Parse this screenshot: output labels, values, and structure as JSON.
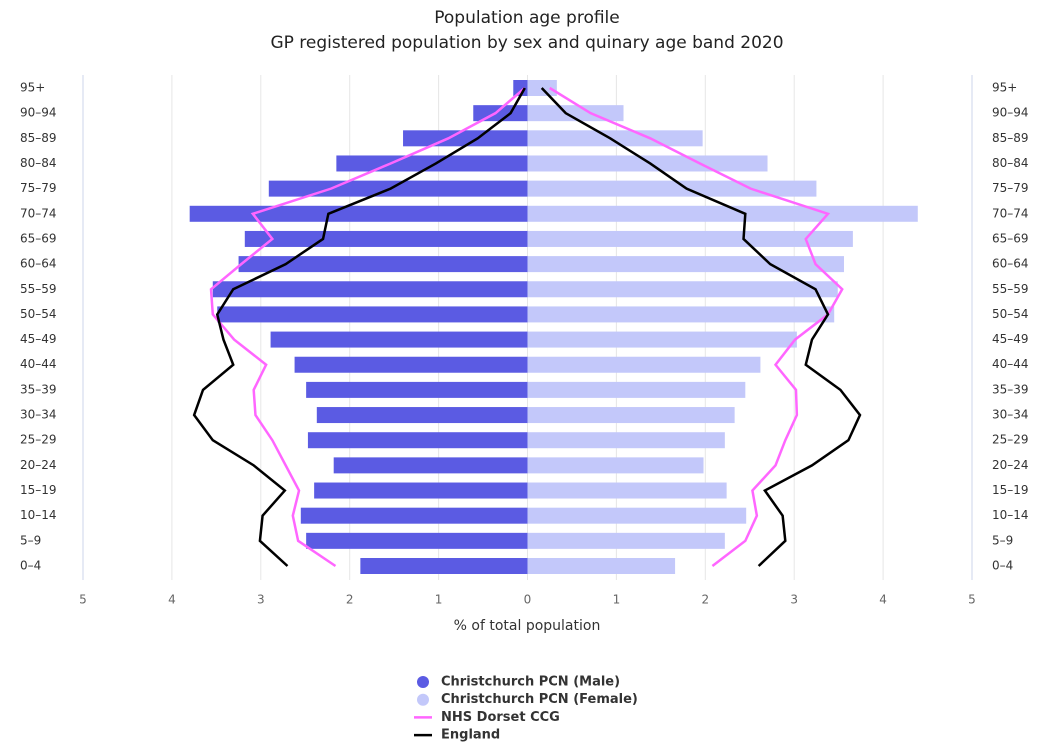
{
  "chart_data": {
    "type": "population-pyramid",
    "title": "Population age profile",
    "subtitle": "GP registered population by sex and quinary age band 2020",
    "x_axis_label": "% of total population",
    "categories": [
      "0–4",
      "5–9",
      "10–14",
      "15–19",
      "20–24",
      "25–29",
      "30–34",
      "35–39",
      "40–44",
      "45–49",
      "50–54",
      "55–59",
      "60–64",
      "65–69",
      "70–74",
      "75–79",
      "80–84",
      "85–89",
      "90–94",
      "95+"
    ],
    "xlim": [
      -5,
      5
    ],
    "xticks": [
      {
        "value": -5,
        "label": "5"
      },
      {
        "value": -4,
        "label": "4"
      },
      {
        "value": -3,
        "label": "3"
      },
      {
        "value": -2,
        "label": "2"
      },
      {
        "value": -1,
        "label": "1"
      },
      0,
      1,
      2,
      3,
      4,
      5
    ],
    "grid": true,
    "series": [
      {
        "name": "Christchurch PCN (Male)",
        "type": "bar",
        "color": "#5b5be3",
        "values": [
          -1.88,
          -2.49,
          -2.55,
          -2.4,
          -2.18,
          -2.47,
          -2.37,
          -2.49,
          -2.62,
          -2.89,
          -3.49,
          -3.54,
          -3.25,
          -3.18,
          -3.8,
          -2.91,
          -2.15,
          -1.4,
          -0.61,
          -0.16
        ]
      },
      {
        "name": "Christchurch PCN (Female)",
        "type": "bar",
        "color": "#c3c8fa",
        "values": [
          1.66,
          2.22,
          2.46,
          2.24,
          1.98,
          2.22,
          2.33,
          2.45,
          2.62,
          3.03,
          3.45,
          3.49,
          3.56,
          3.66,
          4.39,
          3.25,
          2.7,
          1.97,
          1.08,
          0.33
        ]
      },
      {
        "name": "NHS Dorset CCG",
        "type": "line",
        "color": "#ff66ff",
        "male": [
          -2.16,
          -2.58,
          -2.64,
          -2.57,
          -2.72,
          -2.87,
          -3.06,
          -3.08,
          -2.94,
          -3.3,
          -3.54,
          -3.56,
          -3.22,
          -2.87,
          -3.09,
          -2.21,
          -1.54,
          -0.89,
          -0.36,
          -0.03
        ],
        "female": [
          2.08,
          2.45,
          2.58,
          2.53,
          2.79,
          2.9,
          3.03,
          3.02,
          2.79,
          3.01,
          3.38,
          3.54,
          3.24,
          3.13,
          3.38,
          2.51,
          1.94,
          1.38,
          0.71,
          0.25
        ]
      },
      {
        "name": "England",
        "type": "line",
        "color": "#000000",
        "male": [
          -2.7,
          -3.01,
          -2.98,
          -2.73,
          -3.08,
          -3.54,
          -3.75,
          -3.65,
          -3.31,
          -3.42,
          -3.49,
          -3.31,
          -2.72,
          -2.3,
          -2.24,
          -1.54,
          -1.03,
          -0.56,
          -0.19,
          -0.03
        ],
        "female": [
          2.6,
          2.9,
          2.87,
          2.67,
          3.2,
          3.61,
          3.74,
          3.52,
          3.13,
          3.2,
          3.38,
          3.24,
          2.73,
          2.43,
          2.45,
          1.79,
          1.38,
          0.93,
          0.43,
          0.16
        ]
      }
    ]
  }
}
